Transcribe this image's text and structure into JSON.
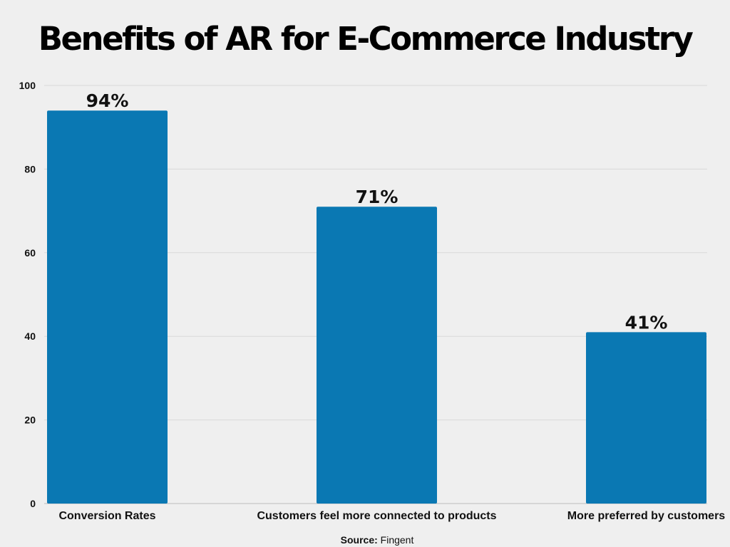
{
  "chart_data": {
    "type": "bar",
    "title": "Benefits of AR for E-Commerce Industry",
    "categories": [
      "Conversion Rates",
      "Customers feel more connected to products",
      "More preferred by customers"
    ],
    "values": [
      94,
      71,
      41
    ],
    "data_labels": [
      "94%",
      "71%",
      "41%"
    ],
    "xlabel": "",
    "ylabel": "",
    "ylim": [
      0,
      100
    ],
    "yticks": [
      0,
      20,
      40,
      60,
      80,
      100
    ],
    "grid": true,
    "bar_color": "#0a78b3"
  },
  "source": {
    "label": "Source:",
    "value": "Fingent"
  }
}
